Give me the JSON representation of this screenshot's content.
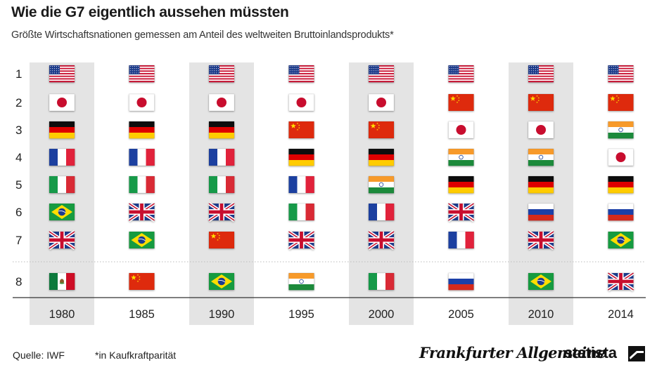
{
  "title": "Wie die G7 eigentlich aussehen müssten",
  "subtitle": "Größte Wirtschaftsnationen gemessen am Anteil des weltweiten Bruttoinlandsprodukts*",
  "footer": {
    "source": "Quelle: IWF",
    "note": "*in Kaufkraftparität",
    "brand_faz": "Frankfurter Allgemeine",
    "brand_statista": "statista"
  },
  "colors": {
    "shaded_column": "#e4e4e4",
    "axis_line": "#333333",
    "divider": "#bbbbbb"
  },
  "chart_data": {
    "type": "table",
    "title": "Wie die G7 eigentlich aussehen müssten",
    "subtitle": "Größte Wirtschaftsnationen gemessen am Anteil des weltweiten Bruttoinlandsprodukts*",
    "columns": [
      "1980",
      "1985",
      "1990",
      "1995",
      "2000",
      "2005",
      "2010",
      "2014"
    ],
    "ranks": [
      "1",
      "2",
      "3",
      "4",
      "5",
      "6",
      "7",
      "8"
    ],
    "shaded_columns": [
      "1980",
      "1990",
      "2000",
      "2010"
    ],
    "rankings": {
      "1980": [
        "us",
        "jp",
        "de",
        "fr",
        "it",
        "br",
        "gb",
        "mx"
      ],
      "1985": [
        "us",
        "jp",
        "de",
        "fr",
        "it",
        "gb",
        "br",
        "cn"
      ],
      "1990": [
        "us",
        "jp",
        "de",
        "fr",
        "it",
        "gb",
        "cn",
        "br"
      ],
      "1995": [
        "us",
        "jp",
        "cn",
        "de",
        "fr",
        "it",
        "gb",
        "in"
      ],
      "2000": [
        "us",
        "jp",
        "cn",
        "de",
        "in",
        "fr",
        "gb",
        "it"
      ],
      "2005": [
        "us",
        "cn",
        "jp",
        "in",
        "de",
        "gb",
        "fr",
        "ru"
      ],
      "2010": [
        "us",
        "cn",
        "jp",
        "in",
        "de",
        "ru",
        "gb",
        "br"
      ],
      "2014": [
        "us",
        "cn",
        "in",
        "jp",
        "de",
        "ru",
        "br",
        "gb"
      ]
    }
  }
}
